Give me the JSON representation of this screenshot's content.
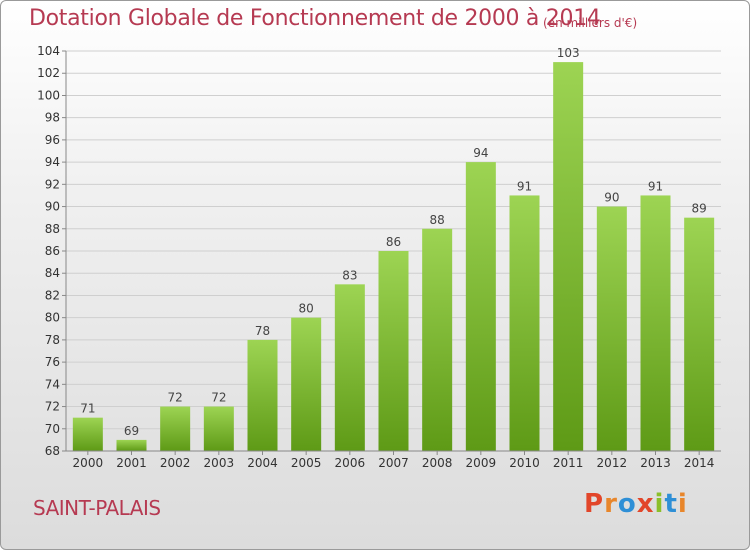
{
  "header": {
    "title": "Dotation Globale de Fonctionnement de 2000 à 2014",
    "unit": "(en milliers d'€)"
  },
  "footer": {
    "place": "SAINT-PALAIS",
    "logo": "Proxiti"
  },
  "colors": {
    "bar_top": "#9dd453",
    "bar_bottom": "#5e9a16",
    "title": "#b63a52",
    "logo": [
      "#e2462a",
      "#e8862b",
      "#2e8fd6",
      "#e2462a",
      "#8bbf2a",
      "#2e8fd6",
      "#e8862b"
    ]
  },
  "chart_data": {
    "type": "bar",
    "title": "Dotation Globale de Fonctionnement de 2000 à 2014",
    "categories": [
      "2000",
      "2001",
      "2002",
      "2003",
      "2004",
      "2005",
      "2006",
      "2007",
      "2008",
      "2009",
      "2010",
      "2011",
      "2012",
      "2013",
      "2014"
    ],
    "values": [
      71,
      69,
      72,
      72,
      78,
      80,
      83,
      86,
      88,
      94,
      91,
      103,
      90,
      91,
      89
    ],
    "ylim": [
      68,
      104
    ],
    "yticks": [
      68,
      70,
      72,
      74,
      76,
      78,
      80,
      82,
      84,
      86,
      88,
      90,
      92,
      94,
      96,
      98,
      100,
      102,
      104
    ],
    "grid": true,
    "xlabel": "",
    "ylabel": ""
  }
}
